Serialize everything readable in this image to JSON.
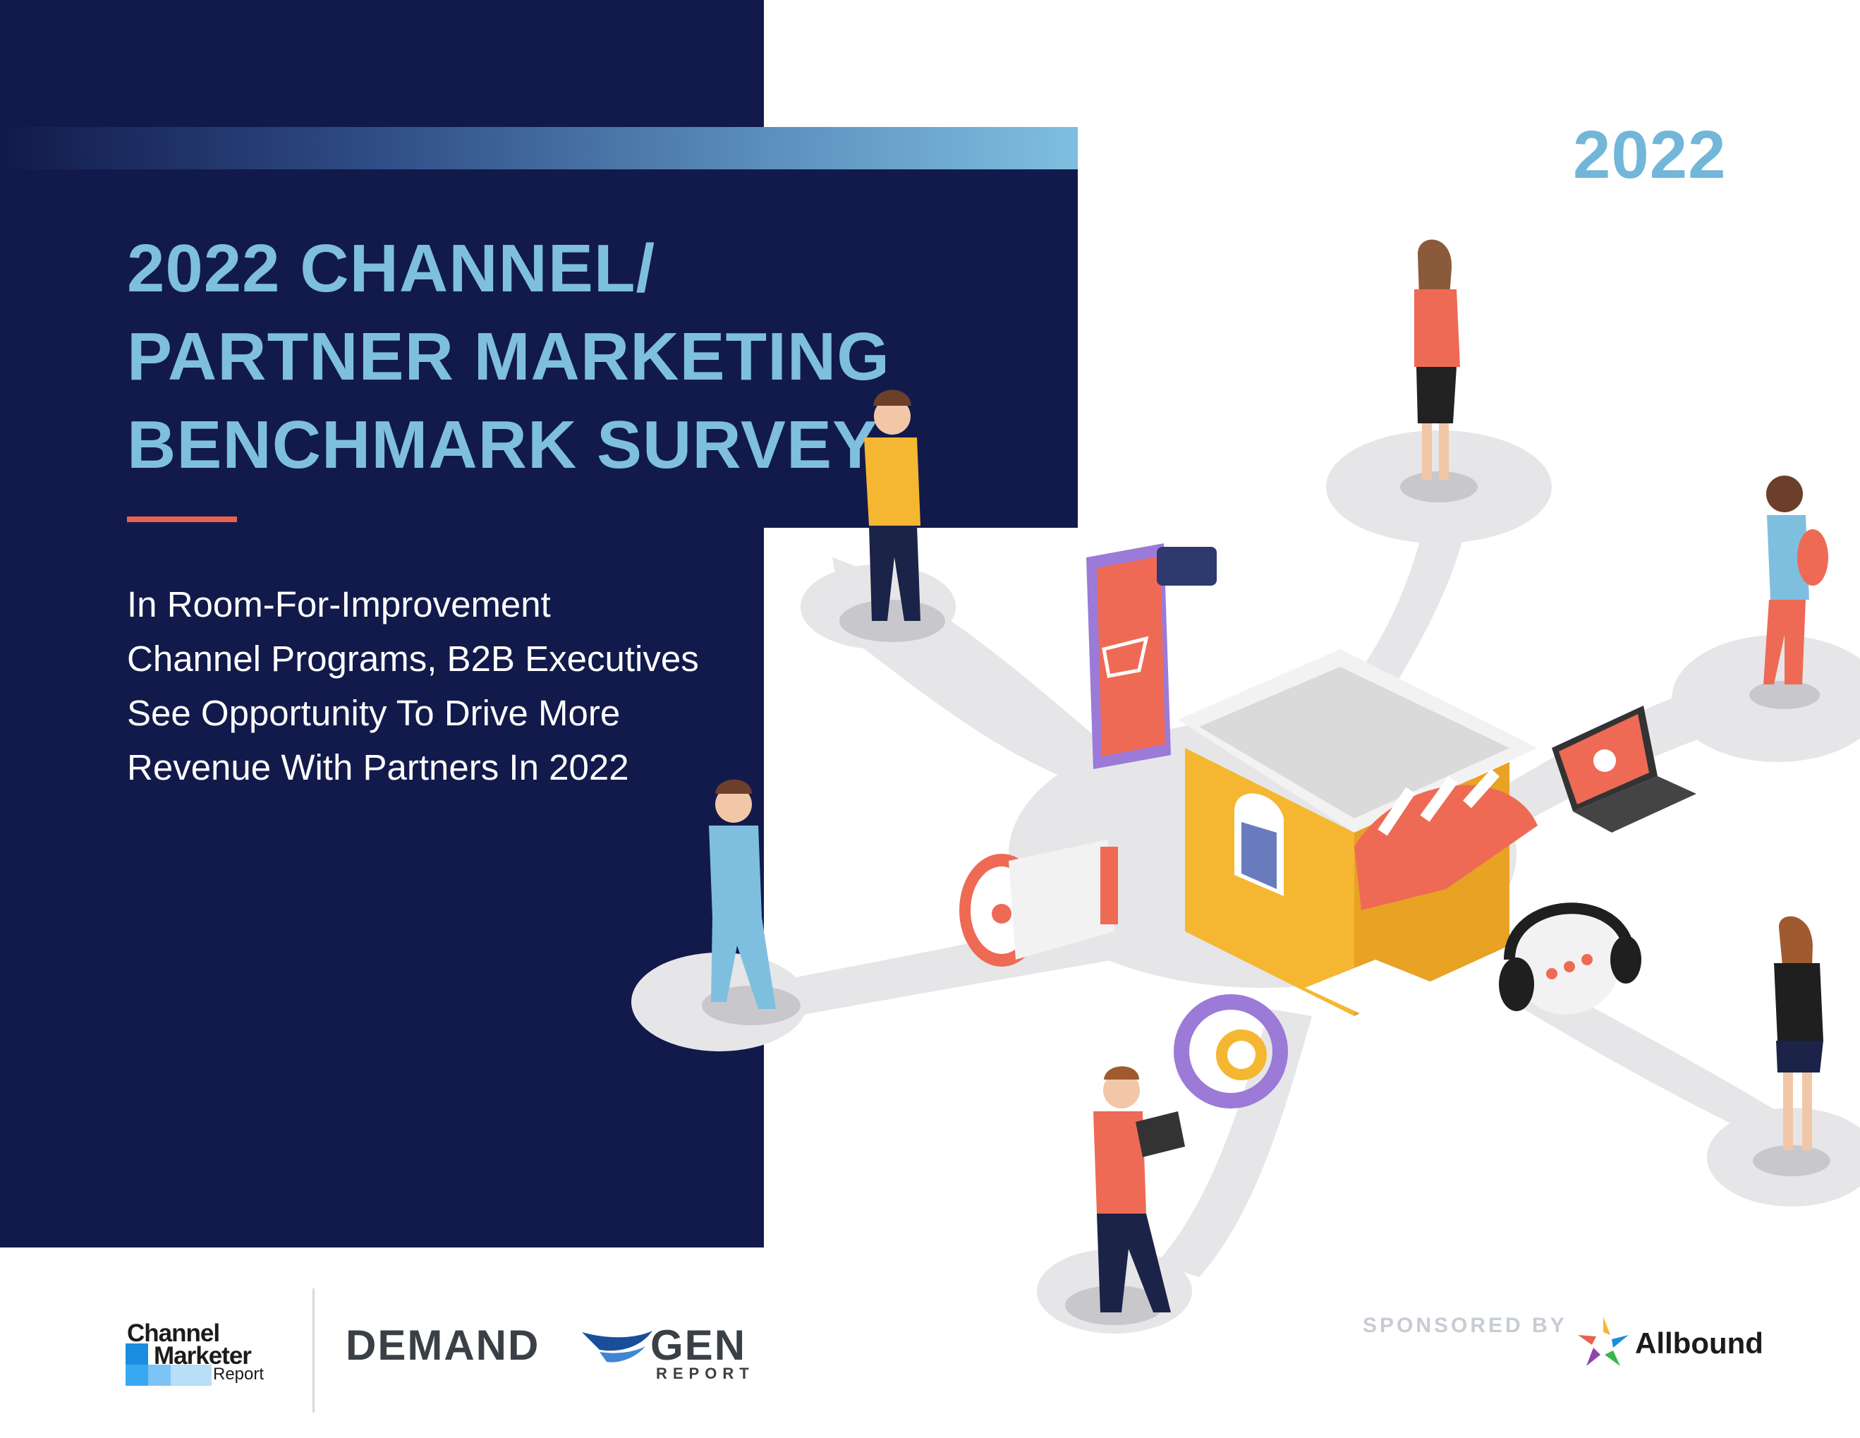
{
  "cover": {
    "year": "2022",
    "title_lines": [
      "2022 CHANNEL/",
      "PARTNER MARKETING",
      "BENCHMARK SURVEY"
    ],
    "subtitle_lines": [
      "In Room-For-Improvement",
      "Channel Programs, B2B Executives",
      "See Opportunity To Drive More",
      "Revenue With Partners In 2022"
    ]
  },
  "footer": {
    "cmr_logo": {
      "line1": "Channel",
      "line2": "Marketer",
      "line3": "Report"
    },
    "dg_logo": {
      "left": "DEMAND",
      "right": "GEN",
      "sub": "REPORT"
    },
    "sponsored_label": "SPONSORED BY",
    "sponsor_name": "Allbound"
  },
  "colors": {
    "navy": "#121a4b",
    "light_blue": "#7ebfe0",
    "accent": "#e9614d",
    "store_yellow": "#f5b731"
  }
}
